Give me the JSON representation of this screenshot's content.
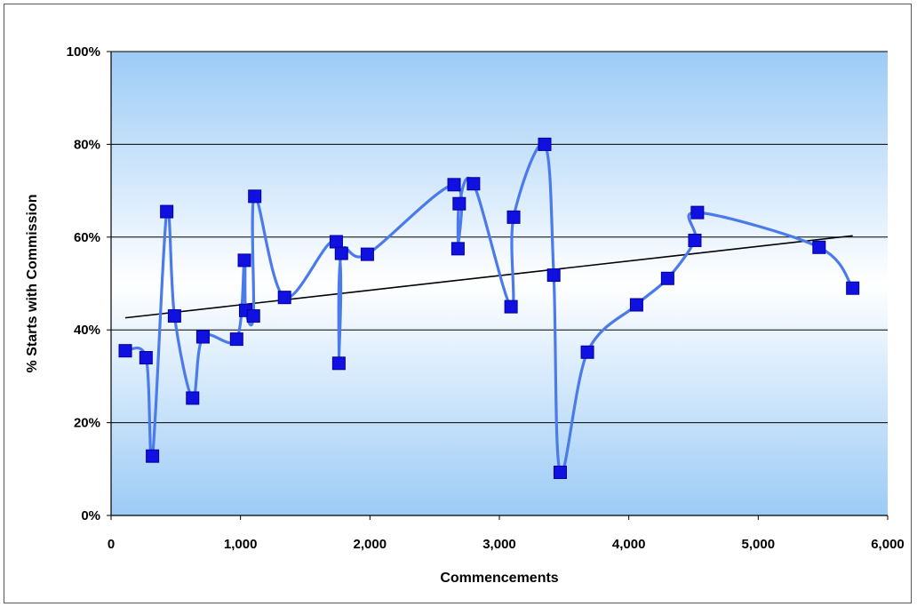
{
  "chart_data": {
    "type": "scatter",
    "title": "",
    "xlabel": "Commencements",
    "ylabel": "% Starts with Commission",
    "xlim": [
      0,
      6000
    ],
    "ylim": [
      0,
      100
    ],
    "x_ticks": [
      0,
      1000,
      2000,
      3000,
      4000,
      5000,
      6000
    ],
    "x_tick_labels": [
      "0",
      "1,000",
      "2,000",
      "3,000",
      "4,000",
      "5,000",
      "6,000"
    ],
    "y_ticks": [
      0,
      20,
      40,
      60,
      80,
      100
    ],
    "y_tick_labels": [
      "0%",
      "20%",
      "40%",
      "60%",
      "80%",
      "100%"
    ],
    "grid": "horizontal",
    "plot_background": "gradient light-to-deep blue",
    "colors": {
      "series_line": "#4B7BEA",
      "marker": "#1010E0",
      "trendline": "#000000",
      "gridline": "#000000",
      "plot_top": "#9CCBF6",
      "plot_mid": "#FFFFFF",
      "plot_bottom": "#9CCBF6"
    },
    "series": [
      {
        "values_xy": [
          [
            110,
            35.5
          ],
          [
            270,
            34
          ],
          [
            320,
            12.8
          ],
          [
            430,
            65.5
          ],
          [
            490,
            43
          ],
          [
            630,
            25.3
          ],
          [
            710,
            38.5
          ],
          [
            970,
            38
          ],
          [
            1030,
            55
          ],
          [
            1040,
            44.2
          ],
          [
            1100,
            43
          ],
          [
            1110,
            68.8
          ],
          [
            1340,
            47
          ],
          [
            1740,
            59
          ],
          [
            1760,
            32.8
          ],
          [
            1780,
            56.5
          ],
          [
            1980,
            56.3
          ],
          [
            2650,
            71.3
          ],
          [
            2680,
            57.5
          ],
          [
            2690,
            67.2
          ],
          [
            2800,
            71.5
          ],
          [
            3090,
            45
          ],
          [
            3110,
            64.3
          ],
          [
            3350,
            80
          ],
          [
            3420,
            51.8
          ],
          [
            3470,
            9.3
          ],
          [
            3680,
            35.2
          ],
          [
            4060,
            45.4
          ],
          [
            4300,
            51.1
          ],
          [
            4510,
            59.3
          ],
          [
            4530,
            65.3
          ],
          [
            5470,
            57.8
          ],
          [
            5730,
            49
          ]
        ],
        "line": "smoothed",
        "marker": "square"
      }
    ],
    "trendline": {
      "type": "linear",
      "x": [
        110,
        5730
      ],
      "y": [
        42.6,
        60.3
      ]
    }
  }
}
